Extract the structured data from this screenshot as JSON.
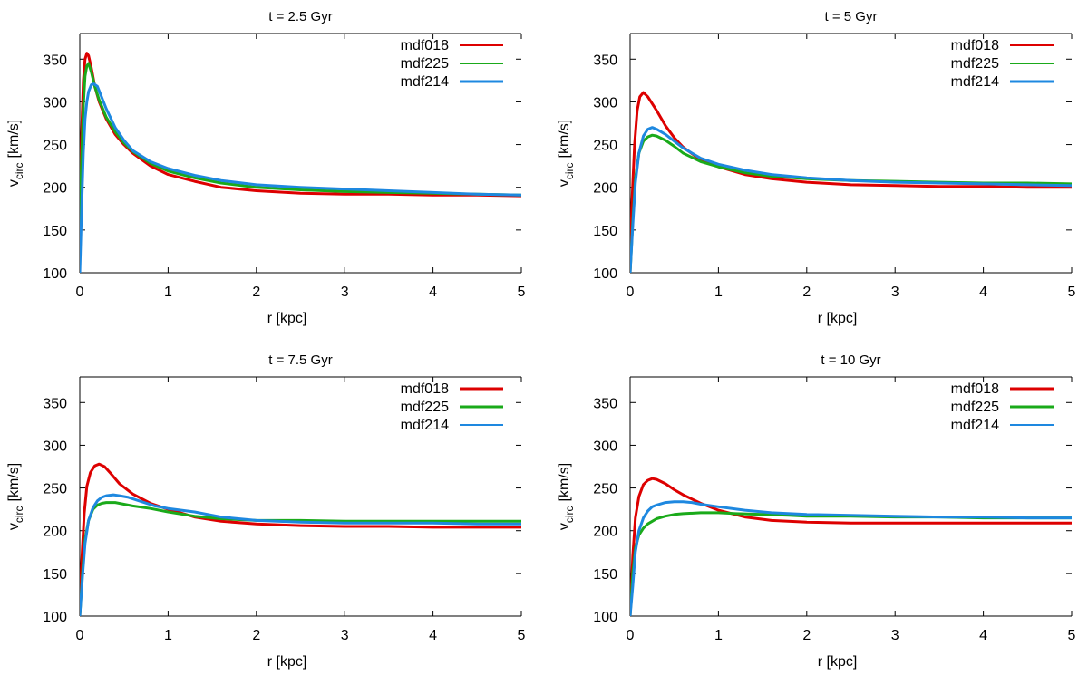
{
  "chart_data": [
    {
      "type": "line",
      "title": "t = 2.5 Gyr",
      "xlabel": "r [kpc]",
      "ylabel_main": "v",
      "ylabel_sub": "circ",
      "ylabel_unit": "[km/s]",
      "xlim": [
        0,
        5
      ],
      "ylim": [
        100,
        380
      ],
      "xticks": [
        0,
        1,
        2,
        3,
        4,
        5
      ],
      "yticks": [
        100,
        150,
        200,
        250,
        300,
        350
      ],
      "legend_position": "top-right",
      "series": [
        {
          "name": "mdf018",
          "color": "#dd0000",
          "legend_thick": false,
          "x": [
            0.0,
            0.02,
            0.04,
            0.06,
            0.08,
            0.1,
            0.13,
            0.17,
            0.22,
            0.3,
            0.4,
            0.5,
            0.6,
            0.8,
            1.0,
            1.3,
            1.6,
            2.0,
            2.5,
            3.0,
            3.5,
            4.0,
            4.5,
            5.0
          ],
          "y": [
            175,
            260,
            325,
            350,
            357,
            354,
            340,
            318,
            300,
            280,
            262,
            250,
            240,
            225,
            215,
            207,
            200,
            196,
            193,
            192,
            192,
            191,
            191,
            190
          ]
        },
        {
          "name": "mdf225",
          "color": "#1aaa1a",
          "legend_thick": false,
          "x": [
            0.0,
            0.02,
            0.04,
            0.06,
            0.08,
            0.1,
            0.13,
            0.17,
            0.22,
            0.3,
            0.4,
            0.5,
            0.6,
            0.8,
            1.0,
            1.3,
            1.6,
            2.0,
            2.5,
            3.0,
            3.5,
            4.0,
            4.5,
            5.0
          ],
          "y": [
            150,
            230,
            295,
            330,
            342,
            345,
            335,
            318,
            302,
            282,
            265,
            252,
            242,
            228,
            219,
            211,
            205,
            200,
            197,
            195,
            194,
            193,
            192,
            191
          ]
        },
        {
          "name": "mdf214",
          "color": "#1e88e0",
          "legend_thick": true,
          "x": [
            0.0,
            0.02,
            0.04,
            0.06,
            0.08,
            0.1,
            0.13,
            0.16,
            0.2,
            0.25,
            0.3,
            0.4,
            0.5,
            0.6,
            0.8,
            1.0,
            1.3,
            1.6,
            2.0,
            2.5,
            3.0,
            3.5,
            4.0,
            4.5,
            5.0
          ],
          "y": [
            100,
            170,
            240,
            280,
            300,
            312,
            320,
            321,
            318,
            305,
            292,
            270,
            255,
            243,
            230,
            222,
            214,
            208,
            203,
            200,
            198,
            196,
            194,
            192,
            191
          ]
        }
      ]
    },
    {
      "type": "line",
      "title": "t = 5 Gyr",
      "xlabel": "r [kpc]",
      "ylabel_main": "v",
      "ylabel_sub": "circ",
      "ylabel_unit": "[km/s]",
      "xlim": [
        0,
        5
      ],
      "ylim": [
        100,
        380
      ],
      "xticks": [
        0,
        1,
        2,
        3,
        4,
        5
      ],
      "yticks": [
        100,
        150,
        200,
        250,
        300,
        350
      ],
      "legend_position": "top-right",
      "series": [
        {
          "name": "mdf018",
          "color": "#dd0000",
          "legend_thick": false,
          "x": [
            0.0,
            0.02,
            0.05,
            0.08,
            0.11,
            0.15,
            0.2,
            0.3,
            0.4,
            0.5,
            0.6,
            0.8,
            1.0,
            1.3,
            1.6,
            2.0,
            2.5,
            3.0,
            3.5,
            4.0,
            4.5,
            5.0
          ],
          "y": [
            100,
            180,
            250,
            290,
            306,
            311,
            306,
            290,
            272,
            258,
            247,
            232,
            224,
            215,
            210,
            206,
            203,
            202,
            201,
            201,
            200,
            200
          ]
        },
        {
          "name": "mdf225",
          "color": "#1aaa1a",
          "legend_thick": false,
          "x": [
            0.0,
            0.03,
            0.06,
            0.1,
            0.15,
            0.2,
            0.25,
            0.3,
            0.4,
            0.5,
            0.6,
            0.8,
            1.0,
            1.3,
            1.6,
            2.0,
            2.5,
            3.0,
            3.5,
            4.0,
            4.5,
            5.0
          ],
          "y": [
            100,
            160,
            210,
            240,
            254,
            259,
            261,
            260,
            255,
            248,
            240,
            230,
            224,
            217,
            213,
            210,
            208,
            207,
            206,
            205,
            205,
            204
          ]
        },
        {
          "name": "mdf214",
          "color": "#1e88e0",
          "legend_thick": true,
          "x": [
            0.0,
            0.03,
            0.06,
            0.1,
            0.15,
            0.2,
            0.25,
            0.3,
            0.4,
            0.5,
            0.6,
            0.8,
            1.0,
            1.3,
            1.6,
            2.0,
            2.5,
            3.0,
            3.5,
            4.0,
            4.5,
            5.0
          ],
          "y": [
            100,
            155,
            205,
            240,
            260,
            268,
            270,
            268,
            262,
            254,
            246,
            234,
            227,
            220,
            215,
            211,
            208,
            206,
            205,
            204,
            203,
            202
          ]
        }
      ]
    },
    {
      "type": "line",
      "title": "t = 7.5 Gyr",
      "xlabel": "r [kpc]",
      "ylabel_main": "v",
      "ylabel_sub": "circ",
      "ylabel_unit": "[km/s]",
      "xlim": [
        0,
        5
      ],
      "ylim": [
        100,
        380
      ],
      "xticks": [
        0,
        1,
        2,
        3,
        4,
        5
      ],
      "yticks": [
        100,
        150,
        200,
        250,
        300,
        350
      ],
      "legend_position": "top-right",
      "series": [
        {
          "name": "mdf018",
          "color": "#dd0000",
          "legend_thick": true,
          "x": [
            0.0,
            0.02,
            0.05,
            0.08,
            0.12,
            0.17,
            0.22,
            0.28,
            0.35,
            0.45,
            0.6,
            0.8,
            1.0,
            1.3,
            1.6,
            2.0,
            2.5,
            3.0,
            3.5,
            4.0,
            4.5,
            5.0
          ],
          "y": [
            100,
            160,
            220,
            252,
            268,
            276,
            278,
            275,
            267,
            255,
            243,
            232,
            225,
            216,
            211,
            208,
            206,
            205,
            205,
            204,
            204,
            204
          ]
        },
        {
          "name": "mdf225",
          "color": "#1aaa1a",
          "legend_thick": true,
          "x": [
            0.0,
            0.03,
            0.06,
            0.1,
            0.15,
            0.2,
            0.25,
            0.3,
            0.4,
            0.5,
            0.6,
            0.8,
            1.0,
            1.3,
            1.6,
            2.0,
            2.5,
            3.0,
            3.5,
            4.0,
            4.5,
            5.0
          ],
          "y": [
            100,
            150,
            190,
            212,
            225,
            230,
            232,
            233,
            233,
            231,
            229,
            226,
            222,
            217,
            214,
            212,
            212,
            211,
            211,
            211,
            211,
            211
          ]
        },
        {
          "name": "mdf214",
          "color": "#1e88e0",
          "legend_thick": false,
          "x": [
            0.0,
            0.03,
            0.06,
            0.1,
            0.15,
            0.2,
            0.25,
            0.3,
            0.38,
            0.45,
            0.55,
            0.7,
            0.85,
            1.0,
            1.3,
            1.6,
            2.0,
            2.5,
            3.0,
            3.5,
            4.0,
            4.5,
            5.0
          ],
          "y": [
            100,
            145,
            185,
            212,
            227,
            235,
            239,
            241,
            242,
            241,
            239,
            234,
            229,
            226,
            222,
            216,
            212,
            210,
            209,
            209,
            209,
            208,
            208
          ]
        }
      ]
    },
    {
      "type": "line",
      "title": "t = 10 Gyr",
      "xlabel": "r [kpc]",
      "ylabel_main": "v",
      "ylabel_sub": "circ",
      "ylabel_unit": "[km/s]",
      "xlim": [
        0,
        5
      ],
      "ylim": [
        100,
        380
      ],
      "xticks": [
        0,
        1,
        2,
        3,
        4,
        5
      ],
      "yticks": [
        100,
        150,
        200,
        250,
        300,
        350
      ],
      "legend_position": "top-right",
      "series": [
        {
          "name": "mdf018",
          "color": "#dd0000",
          "legend_thick": true,
          "x": [
            0.0,
            0.03,
            0.06,
            0.1,
            0.15,
            0.2,
            0.25,
            0.3,
            0.4,
            0.5,
            0.6,
            0.8,
            1.0,
            1.3,
            1.6,
            2.0,
            2.5,
            3.0,
            3.5,
            4.0,
            4.5,
            5.0
          ],
          "y": [
            100,
            170,
            215,
            240,
            254,
            259,
            261,
            260,
            255,
            248,
            242,
            232,
            224,
            216,
            212,
            210,
            209,
            209,
            209,
            209,
            209,
            209
          ]
        },
        {
          "name": "mdf225",
          "color": "#1aaa1a",
          "legend_thick": true,
          "x": [
            0.0,
            0.03,
            0.06,
            0.1,
            0.15,
            0.2,
            0.25,
            0.3,
            0.4,
            0.5,
            0.6,
            0.8,
            1.0,
            1.2,
            1.5,
            1.8,
            2.0,
            2.5,
            3.0,
            3.5,
            4.0,
            4.5,
            5.0
          ],
          "y": [
            100,
            150,
            180,
            195,
            203,
            208,
            211,
            214,
            217,
            219,
            220,
            221,
            221,
            220,
            219,
            218,
            217,
            217,
            216,
            216,
            215,
            215,
            215
          ]
        },
        {
          "name": "mdf214",
          "color": "#1e88e0",
          "legend_thick": false,
          "x": [
            0.0,
            0.03,
            0.06,
            0.1,
            0.15,
            0.2,
            0.25,
            0.3,
            0.4,
            0.5,
            0.6,
            0.7,
            0.8,
            1.0,
            1.3,
            1.6,
            2.0,
            2.5,
            3.0,
            3.5,
            4.0,
            4.5,
            5.0
          ],
          "y": [
            100,
            135,
            175,
            200,
            215,
            223,
            228,
            230,
            233,
            234,
            234,
            233,
            231,
            228,
            224,
            221,
            219,
            218,
            217,
            216,
            216,
            215,
            215
          ]
        }
      ]
    }
  ]
}
